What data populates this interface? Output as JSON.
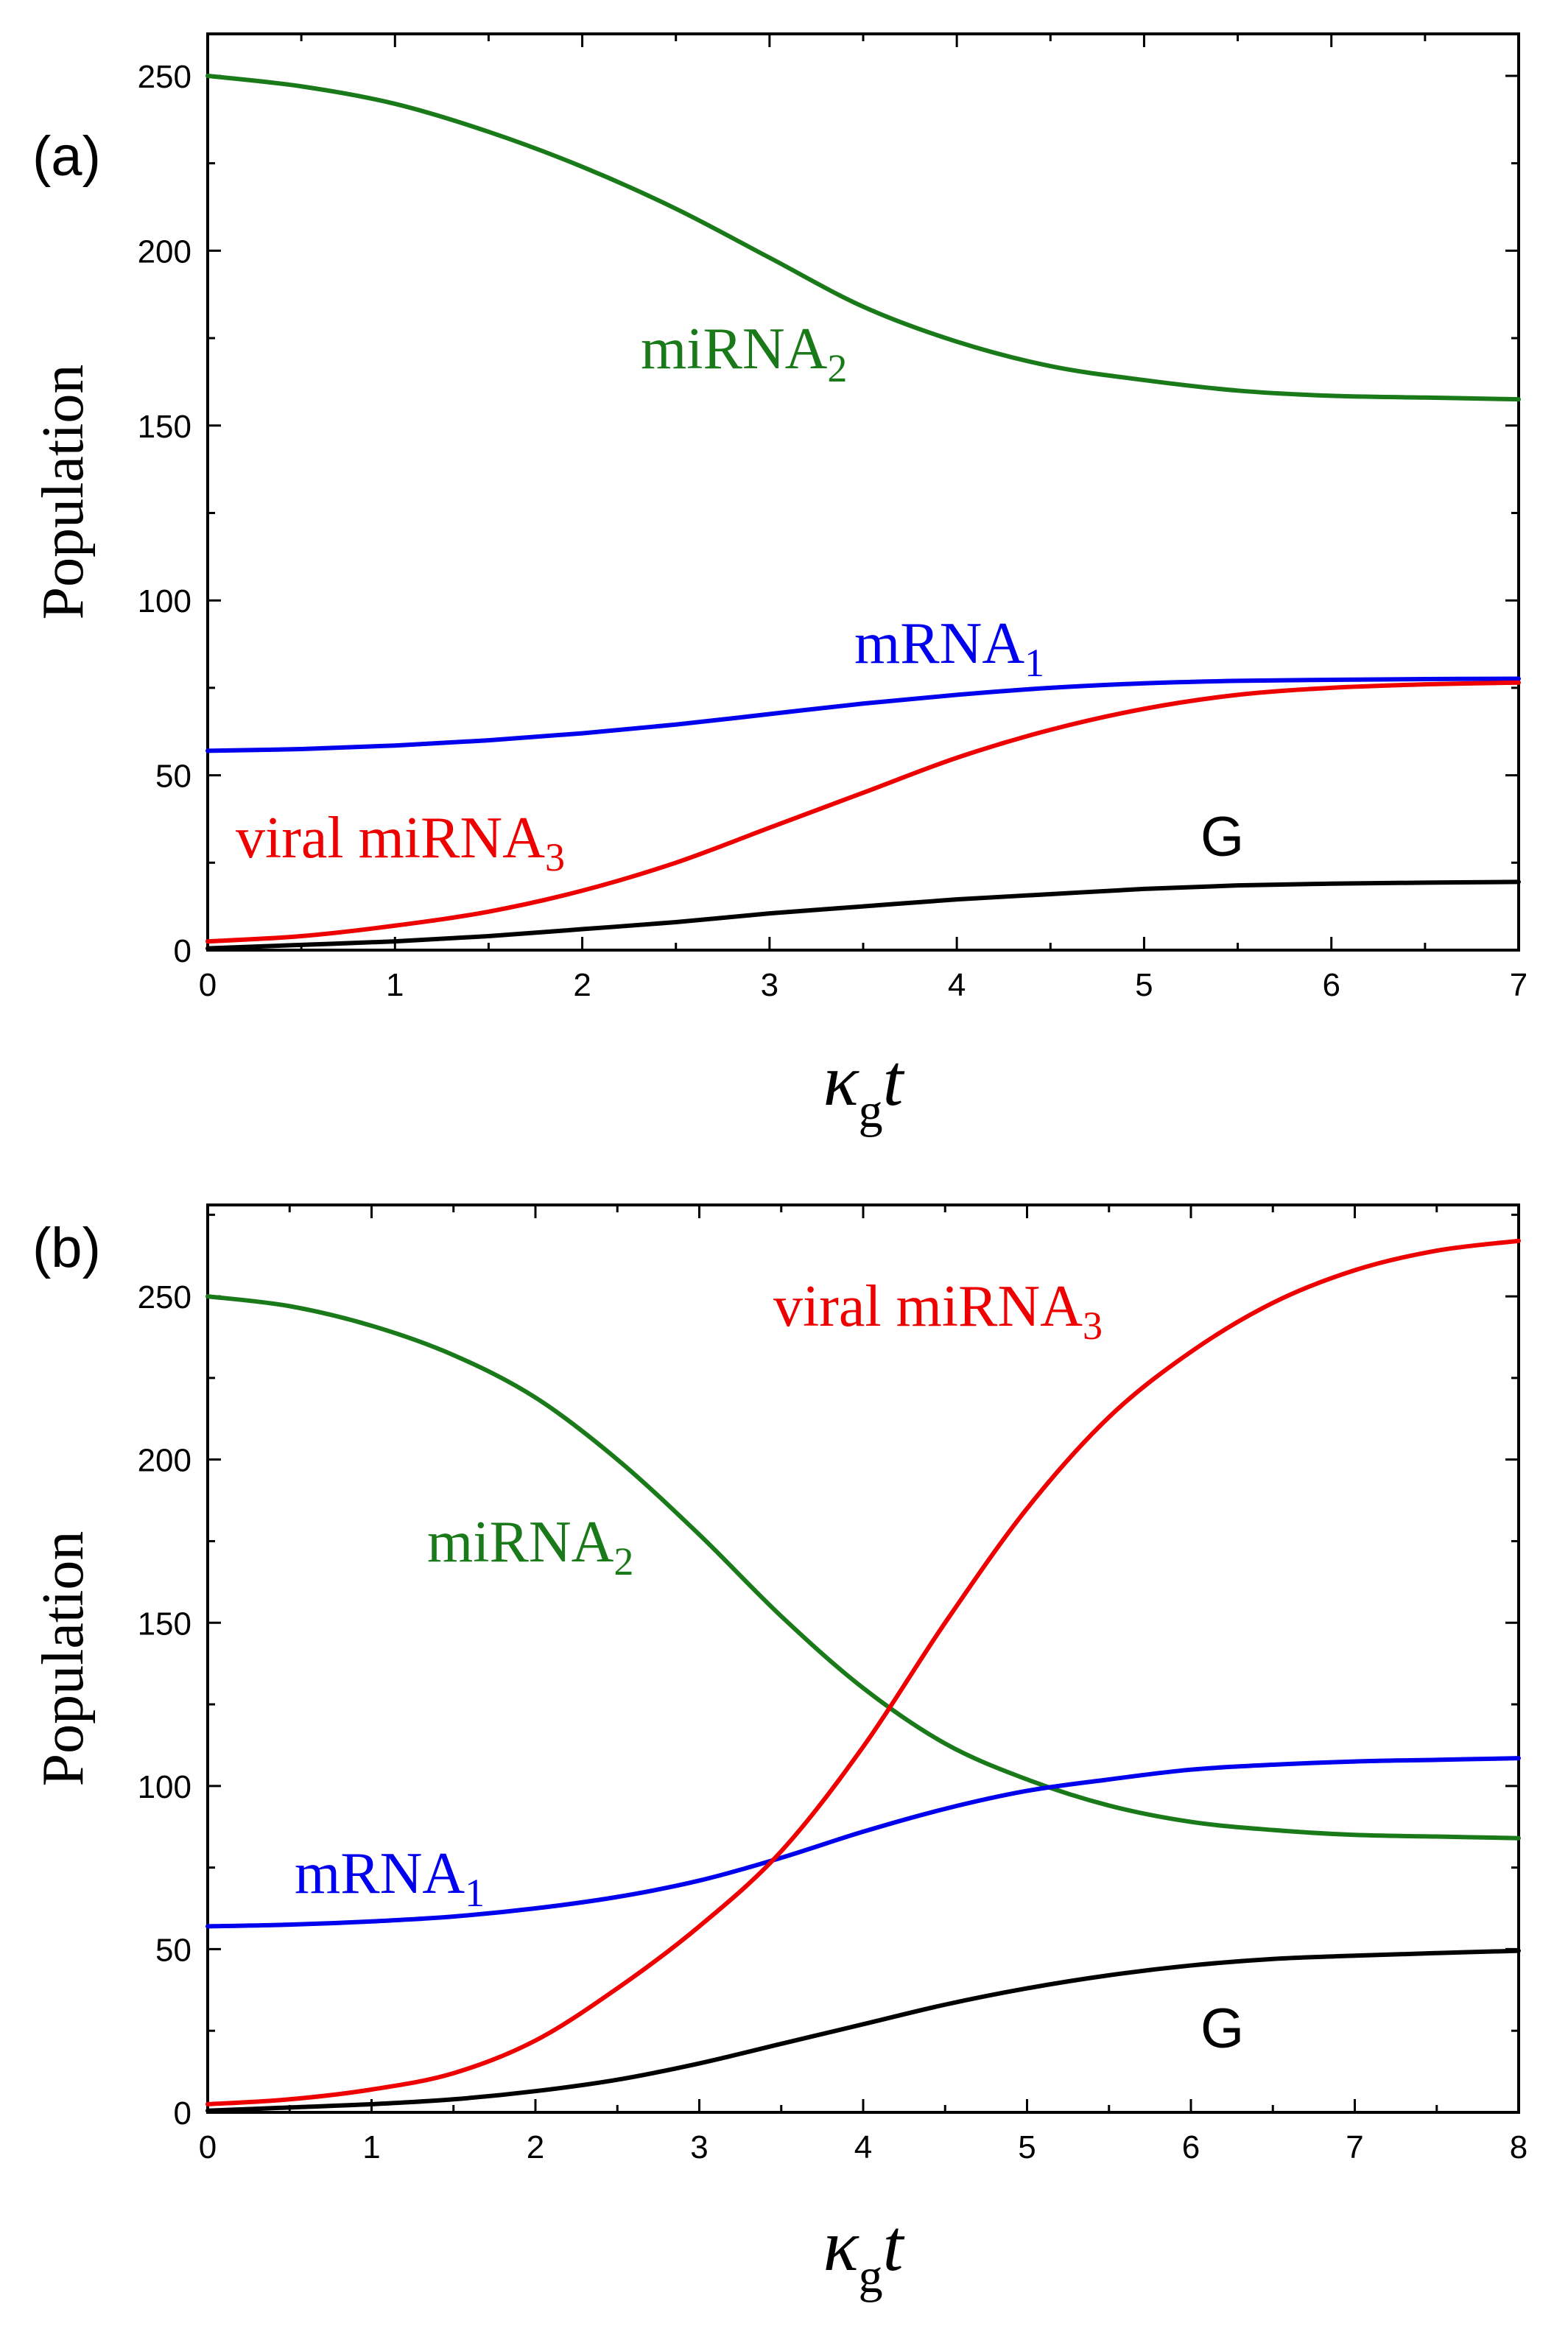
{
  "chart_data": [
    {
      "type": "line",
      "panel_label": "(a)",
      "xlabel": {
        "symbol": "κ",
        "subscript": "g",
        "var": "t"
      },
      "ylabel": "Population",
      "xlim": [
        0,
        7
      ],
      "ylim": [
        0,
        262
      ],
      "xticks": [
        0,
        1,
        2,
        3,
        4,
        5,
        6,
        7
      ],
      "yticks": [
        0,
        50,
        100,
        150,
        200,
        250
      ],
      "colors": {
        "miRNA2": "#1a7a1a",
        "mRNA1": "#0000ee",
        "viral": "#ee0000",
        "G": "#000000"
      },
      "series": [
        {
          "name": "miRNA2",
          "label_main": "miRNA",
          "label_sub": "2",
          "color": "#1a7a1a",
          "x": [
            0,
            0.5,
            1,
            1.5,
            2,
            2.5,
            3,
            3.5,
            4,
            4.5,
            5,
            5.5,
            6,
            6.5,
            7
          ],
          "y": [
            250,
            247,
            242,
            234,
            224,
            212,
            198,
            184,
            174,
            167,
            163,
            160,
            158.5,
            158,
            157.5
          ]
        },
        {
          "name": "mRNA1",
          "label_main": "mRNA",
          "label_sub": "1",
          "color": "#0000ee",
          "x": [
            0,
            0.5,
            1,
            1.5,
            2,
            2.5,
            3,
            3.5,
            4,
            4.5,
            5,
            5.5,
            6,
            6.5,
            7
          ],
          "y": [
            57,
            57.5,
            58.5,
            60,
            62,
            64.5,
            67.5,
            70.5,
            73,
            75,
            76.3,
            77,
            77.3,
            77.5,
            77.6
          ]
        },
        {
          "name": "viral miRNA3",
          "label_main": "viral miRNA",
          "label_sub": "3",
          "color": "#ee0000",
          "x": [
            0,
            0.5,
            1,
            1.5,
            2,
            2.5,
            3,
            3.5,
            4,
            4.5,
            5,
            5.5,
            6,
            6.5,
            7
          ],
          "y": [
            2.5,
            4,
            7,
            11,
            17,
            25,
            35,
            45,
            55,
            63,
            69,
            73,
            75,
            76,
            76.5
          ]
        },
        {
          "name": "G",
          "label_main": "G",
          "label_sub": "",
          "color": "#000000",
          "x": [
            0,
            0.5,
            1,
            1.5,
            2,
            2.5,
            3,
            3.5,
            4,
            4.5,
            5,
            5.5,
            6,
            6.5,
            7
          ],
          "y": [
            0.5,
            1.5,
            2.5,
            4,
            6,
            8,
            10.5,
            12.5,
            14.5,
            16,
            17.5,
            18.5,
            19,
            19.3,
            19.5
          ]
        }
      ]
    },
    {
      "type": "line",
      "panel_label": "(b)",
      "xlabel": {
        "symbol": "κ",
        "subscript": "g",
        "var": "t"
      },
      "ylabel": "Population",
      "xlim": [
        0,
        8
      ],
      "ylim": [
        0,
        278
      ],
      "xticks": [
        0,
        1,
        2,
        3,
        4,
        5,
        6,
        7,
        8
      ],
      "yticks": [
        0,
        50,
        100,
        150,
        200,
        250
      ],
      "colors": {
        "miRNA2": "#1a7a1a",
        "mRNA1": "#0000ee",
        "viral": "#ee0000",
        "G": "#000000"
      },
      "series": [
        {
          "name": "miRNA2",
          "label_main": "miRNA",
          "label_sub": "2",
          "color": "#1a7a1a",
          "x": [
            0,
            0.5,
            1,
            1.5,
            2,
            2.5,
            3,
            3.5,
            4,
            4.5,
            5,
            5.5,
            6,
            6.5,
            7,
            7.5,
            8
          ],
          "y": [
            250,
            247,
            241,
            232,
            219,
            200,
            177,
            152,
            130,
            113,
            102,
            94,
            89,
            86.5,
            85,
            84.5,
            84
          ]
        },
        {
          "name": "mRNA1",
          "label_main": "mRNA",
          "label_sub": "1",
          "color": "#0000ee",
          "x": [
            0,
            0.5,
            1,
            1.5,
            2,
            2.5,
            3,
            3.5,
            4,
            4.5,
            5,
            5.5,
            6,
            6.5,
            7,
            7.5,
            8
          ],
          "y": [
            57,
            57.5,
            58.5,
            60,
            62.5,
            66,
            71,
            78,
            86,
            93,
            98.5,
            102,
            105,
            106.5,
            107.5,
            108,
            108.5
          ]
        },
        {
          "name": "viral miRNA3",
          "label_main": "viral miRNA",
          "label_sub": "3",
          "color": "#ee0000",
          "x": [
            0,
            0.5,
            1,
            1.5,
            2,
            2.5,
            3,
            3.5,
            4,
            4.5,
            5,
            5.5,
            6,
            6.5,
            7,
            7.5,
            8
          ],
          "y": [
            2.5,
            4,
            7,
            12,
            22,
            38,
            57,
            80,
            112,
            150,
            185,
            213,
            233,
            248,
            258,
            264,
            267
          ]
        },
        {
          "name": "G",
          "label_main": "G",
          "label_sub": "",
          "color": "#000000",
          "x": [
            0,
            0.5,
            1,
            1.5,
            2,
            2.5,
            3,
            3.5,
            4,
            4.5,
            5,
            5.5,
            6,
            6.5,
            7,
            7.5,
            8
          ],
          "y": [
            0.5,
            1.5,
            2.5,
            4,
            6.5,
            10,
            15,
            21,
            27,
            33,
            38,
            42,
            45,
            47,
            48,
            48.8,
            49.5
          ]
        }
      ]
    }
  ]
}
